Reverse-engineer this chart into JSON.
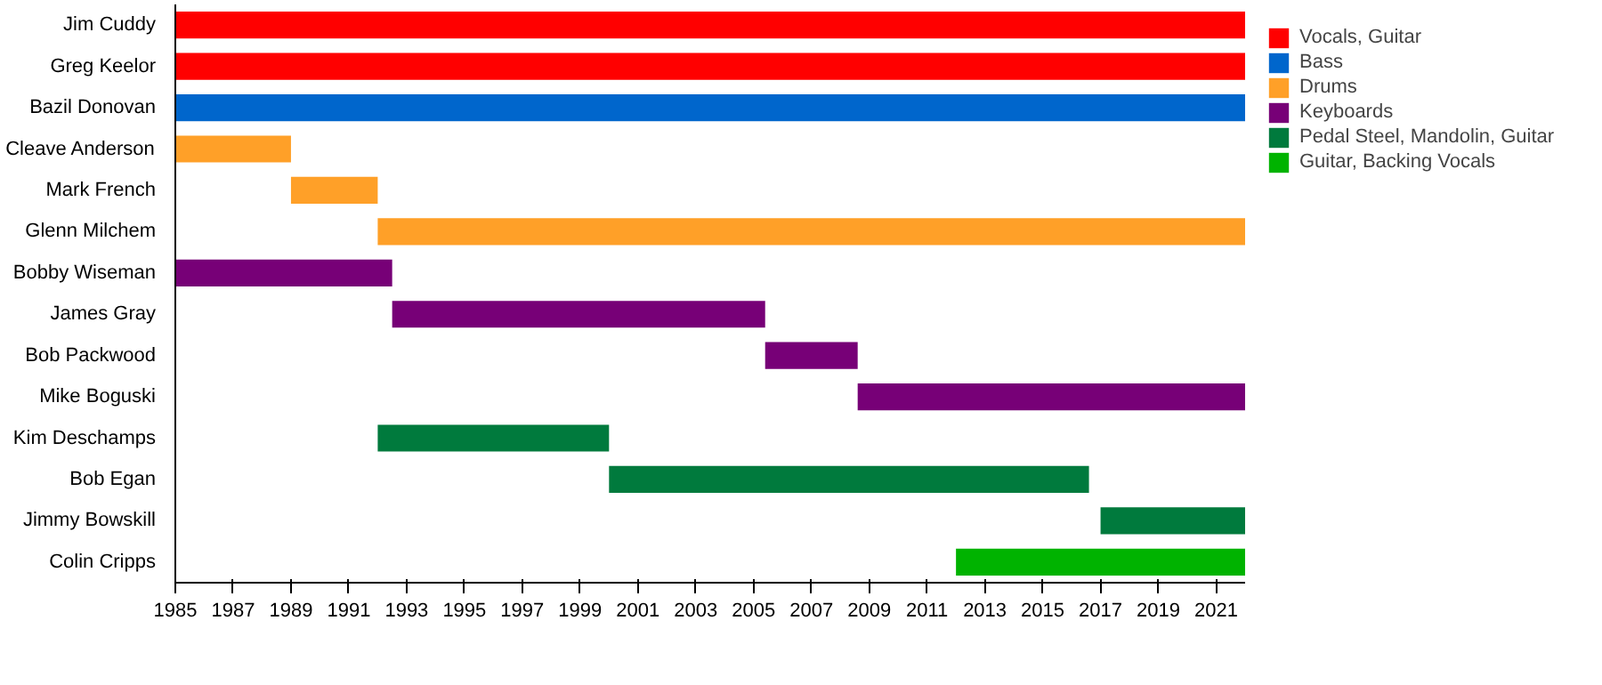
{
  "chart_data": {
    "type": "bar",
    "orientation": "horizontal",
    "categories": [
      "Jim Cuddy",
      "Greg Keelor",
      "Bazil Donovan",
      "Cleave Anderson",
      "Mark French",
      "Glenn Milchem",
      "Bobby Wiseman",
      "James Gray",
      "Bob Packwood",
      "Mike Boguski",
      "Kim Deschamps",
      "Bob Egan",
      "Jimmy Bowskill",
      "Colin Cripps"
    ],
    "series": [
      {
        "name": "Vocals, Guitar",
        "color": "#ff0000",
        "base": [
          1985,
          1985,
          null,
          null,
          null,
          null,
          null,
          null,
          null,
          null,
          null,
          null,
          null,
          null
        ],
        "values": [
          37,
          37,
          null,
          null,
          null,
          null,
          null,
          null,
          null,
          null,
          null,
          null,
          null,
          null
        ]
      },
      {
        "name": "Bass",
        "color": "#0066cc",
        "base": [
          null,
          null,
          1985,
          null,
          null,
          null,
          null,
          null,
          null,
          null,
          null,
          null,
          null,
          null
        ],
        "values": [
          null,
          null,
          37,
          null,
          null,
          null,
          null,
          null,
          null,
          null,
          null,
          null,
          null,
          null
        ]
      },
      {
        "name": "Drums",
        "color": "#ffa028",
        "base": [
          null,
          null,
          null,
          1985,
          1989,
          1992,
          null,
          null,
          null,
          null,
          null,
          null,
          null,
          null
        ],
        "values": [
          null,
          null,
          null,
          4,
          3,
          30,
          null,
          null,
          null,
          null,
          null,
          null,
          null,
          null
        ]
      },
      {
        "name": "Keyboards",
        "color": "#770077",
        "base": [
          null,
          null,
          null,
          null,
          null,
          null,
          1985,
          1992.5,
          2005.4,
          2008.6,
          null,
          null,
          null,
          null
        ],
        "values": [
          null,
          null,
          null,
          null,
          null,
          null,
          7.5,
          12.9,
          3.2,
          13.4,
          null,
          null,
          null,
          null
        ]
      },
      {
        "name": "Pedal Steel, Mandolin, Guitar",
        "color": "#007a3d",
        "base": [
          null,
          null,
          null,
          null,
          null,
          null,
          null,
          null,
          null,
          null,
          1992,
          2000,
          2017,
          null
        ],
        "values": [
          null,
          null,
          null,
          null,
          null,
          null,
          null,
          null,
          null,
          null,
          8,
          16.6,
          5,
          null
        ]
      },
      {
        "name": "Guitar, Backing Vocals",
        "color": "#00b300",
        "base": [
          null,
          null,
          null,
          null,
          null,
          null,
          null,
          null,
          null,
          null,
          null,
          null,
          null,
          2012
        ],
        "values": [
          null,
          null,
          null,
          null,
          null,
          null,
          null,
          null,
          null,
          null,
          null,
          null,
          null,
          10
        ]
      }
    ],
    "xlim": [
      1985,
      2022
    ],
    "xticks": [
      1985,
      1987,
      1989,
      1991,
      1993,
      1995,
      1997,
      1999,
      2001,
      2003,
      2005,
      2007,
      2009,
      2011,
      2013,
      2015,
      2017,
      2019,
      2021
    ],
    "grid": false,
    "legend": "top right"
  }
}
